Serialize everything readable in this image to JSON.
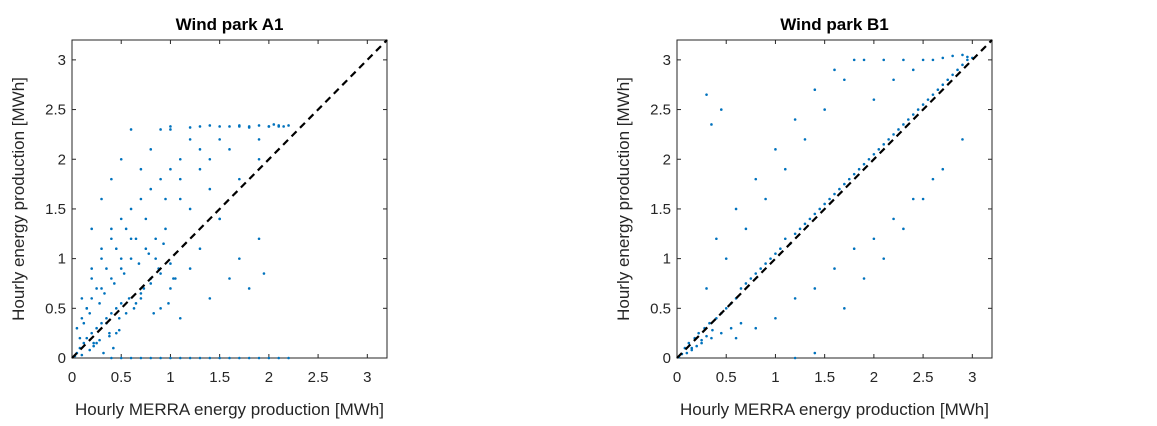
{
  "chart_data": [
    {
      "type": "scatter",
      "title": "Wind park A1",
      "xlabel": "Hourly MERRA energy production [MWh]",
      "ylabel": "Hourly energy production [MWh]",
      "xlim": [
        0,
        3.2
      ],
      "ylim": [
        0,
        3.2
      ],
      "xticks": [
        0,
        0.5,
        1,
        1.5,
        2,
        2.5,
        3
      ],
      "yticks": [
        0,
        0.5,
        1,
        1.5,
        2,
        2.5,
        3
      ],
      "xtick_labels": [
        "0",
        "0.5",
        "1",
        "1.5",
        "2",
        "2.5",
        "3"
      ],
      "ytick_labels": [
        "0",
        "0.5",
        "1",
        "1.5",
        "2",
        "2.5",
        "3"
      ],
      "grid": false,
      "reference_line": {
        "from": [
          0,
          0
        ],
        "to": [
          3.2,
          3.2
        ],
        "style": "dashed",
        "color": "#000000"
      },
      "point_color": "#0072BD",
      "series": [
        {
          "x": [
            0.03,
            0.05,
            0.08,
            0.1,
            0.12,
            0.15,
            0.18,
            0.2,
            0.22,
            0.25,
            0.28,
            0.3,
            0.32,
            0.35,
            0.38,
            0.4,
            0.42,
            0.45,
            0.48,
            0.5,
            0.05,
            0.1,
            0.15,
            0.2,
            0.25,
            0.3,
            0.35,
            0.4,
            0.45,
            0.5,
            0.55,
            0.6,
            0.65,
            0.7,
            0.75,
            0.8,
            0.85,
            0.9,
            0.95,
            1.0,
            0.1,
            0.2,
            0.3,
            0.4,
            0.5,
            0.6,
            0.7,
            0.8,
            0.9,
            1.0,
            1.1,
            1.2,
            1.3,
            1.4,
            1.5,
            0.2,
            0.3,
            0.4,
            0.5,
            0.6,
            0.7,
            0.8,
            0.9,
            1.0,
            1.1,
            1.2,
            1.3,
            1.4,
            1.5,
            1.6,
            1.7,
            1.8,
            1.9,
            2.0,
            2.1,
            0.4,
            0.5,
            0.6,
            0.7,
            0.8,
            0.9,
            1.0,
            1.1,
            1.2,
            1.3,
            1.4,
            1.5,
            1.6,
            1.7,
            1.8,
            1.9,
            2.0,
            2.1,
            2.2,
            0.2,
            0.3,
            0.4,
            0.5,
            0.6,
            0.7,
            0.8,
            0.9,
            1.0,
            1.1,
            1.2,
            1.3,
            1.4,
            1.5,
            1.6,
            1.7,
            1.8,
            1.9,
            1.95,
            1.0,
            1.2,
            1.4,
            1.6,
            1.7,
            1.8,
            1.9,
            2.0,
            2.05,
            2.1,
            2.15,
            2.2,
            1.1,
            1.3,
            1.5,
            1.7,
            1.9,
            0.15,
            0.25,
            0.35,
            0.45,
            0.55,
            0.65,
            0.75,
            0.85,
            0.95,
            1.05,
            0.08,
            0.12,
            0.18,
            0.22,
            0.28,
            0.33,
            0.38,
            0.43,
            0.48,
            0.53,
            0.58,
            0.63,
            0.68,
            0.73,
            0.78,
            0.83,
            0.88,
            0.93,
            0.98,
            1.03
          ],
          "y": [
            0.02,
            0.05,
            0.1,
            0.03,
            0.15,
            0.2,
            0.08,
            0.25,
            0.12,
            0.3,
            0.18,
            0.35,
            0.05,
            0.4,
            0.22,
            0.45,
            0.1,
            0.5,
            0.28,
            0.55,
            0.3,
            0.4,
            0.5,
            0.6,
            0.15,
            0.7,
            0.35,
            0.8,
            0.25,
            0.9,
            0.45,
            1.0,
            0.55,
            0.65,
            1.1,
            0.75,
            1.2,
            0.85,
            1.3,
            0.95,
            0.6,
            0.8,
            1.0,
            1.2,
            1.4,
            1.5,
            1.6,
            1.7,
            1.8,
            1.9,
            2.0,
            1.5,
            2.1,
            1.7,
            2.2,
            1.3,
            1.6,
            1.8,
            2.0,
            2.3,
            1.9,
            2.1,
            2.3,
            2.33,
            1.8,
            2.2,
            2.33,
            2.0,
            2.33,
            2.1,
            2.33,
            2.33,
            2.2,
            2.33,
            2.33,
            0.0,
            0.0,
            0.0,
            0.0,
            0.0,
            0.0,
            0.0,
            0.0,
            0.0,
            0.0,
            0.0,
            0.0,
            0.0,
            0.0,
            0.0,
            0.0,
            0.0,
            0.0,
            0.0,
            0.9,
            1.1,
            1.3,
            1.0,
            1.2,
            0.6,
            0.8,
            0.5,
            0.7,
            0.4,
            0.9,
            1.1,
            0.6,
            1.4,
            0.8,
            1.0,
            0.7,
            1.2,
            0.85,
            2.3,
            2.32,
            2.34,
            2.33,
            2.34,
            2.32,
            2.34,
            2.33,
            2.35,
            2.34,
            2.33,
            2.34,
            1.6,
            1.9,
            1.4,
            1.8,
            2.0,
            0.5,
            0.7,
            0.9,
            1.1,
            1.3,
            1.2,
            1.4,
            1.0,
            1.6,
            0.8,
            0.2,
            0.35,
            0.45,
            0.15,
            0.55,
            0.65,
            0.25,
            0.75,
            0.4,
            0.85,
            0.6,
            0.5,
            0.95,
            0.7,
            1.05,
            0.45,
            0.9,
            1.15,
            0.55,
            0.8
          ]
        }
      ]
    },
    {
      "type": "scatter",
      "title": "Wind park B1",
      "xlabel": "Hourly MERRA energy production [MWh]",
      "ylabel": "Hourly energy production [MWh]",
      "xlim": [
        0,
        3.2
      ],
      "ylim": [
        0,
        3.2
      ],
      "xticks": [
        0,
        0.5,
        1,
        1.5,
        2,
        2.5,
        3
      ],
      "yticks": [
        0,
        0.5,
        1,
        1.5,
        2,
        2.5,
        3
      ],
      "xtick_labels": [
        "0",
        "0.5",
        "1",
        "1.5",
        "2",
        "2.5",
        "3"
      ],
      "ytick_labels": [
        "0",
        "0.5",
        "1",
        "1.5",
        "2",
        "2.5",
        "3"
      ],
      "grid": false,
      "reference_line": {
        "from": [
          0,
          0
        ],
        "to": [
          3.2,
          3.2
        ],
        "style": "dashed",
        "color": "#000000"
      },
      "point_color": "#0072BD",
      "series": [
        {
          "x": [
            0.02,
            0.05,
            0.08,
            0.1,
            0.12,
            0.15,
            0.18,
            0.2,
            0.22,
            0.25,
            0.28,
            0.3,
            0.33,
            0.36,
            0.4,
            0.45,
            0.5,
            0.55,
            0.6,
            0.65,
            0.7,
            0.75,
            0.8,
            0.85,
            0.9,
            0.95,
            1.0,
            1.05,
            1.1,
            1.15,
            1.2,
            1.25,
            1.3,
            1.35,
            1.4,
            1.45,
            1.5,
            1.55,
            1.6,
            1.65,
            1.7,
            1.75,
            1.8,
            1.85,
            1.9,
            1.95,
            2.0,
            2.05,
            2.1,
            2.15,
            2.2,
            2.25,
            2.3,
            2.35,
            2.4,
            2.45,
            2.5,
            2.55,
            2.6,
            2.65,
            2.7,
            2.75,
            2.8,
            2.85,
            2.9,
            2.95,
            3.0,
            0.3,
            0.5,
            0.7,
            0.9,
            1.1,
            1.3,
            1.5,
            1.7,
            1.9,
            2.1,
            2.3,
            2.5,
            0.6,
            0.8,
            1.0,
            1.2,
            1.4,
            1.6,
            1.8,
            2.0,
            2.2,
            2.4,
            2.6,
            0.4,
            0.6,
            0.8,
            1.0,
            1.2,
            1.4,
            1.6,
            1.8,
            2.0,
            2.2,
            2.4,
            0.15,
            0.25,
            0.35,
            0.45,
            0.55,
            0.65,
            1.7,
            1.9,
            2.1,
            2.3,
            2.5,
            2.7,
            2.9,
            2.6,
            2.7,
            2.8,
            2.9,
            2.95,
            0.45,
            0.3,
            0.35,
            1.2,
            1.4
          ],
          "y": [
            0.01,
            0.04,
            0.1,
            0.05,
            0.15,
            0.08,
            0.2,
            0.12,
            0.25,
            0.18,
            0.3,
            0.22,
            0.35,
            0.28,
            0.4,
            0.45,
            0.5,
            0.55,
            0.6,
            0.7,
            0.75,
            0.8,
            0.85,
            0.9,
            0.95,
            1.0,
            1.05,
            1.1,
            1.2,
            1.15,
            1.25,
            1.3,
            1.35,
            1.4,
            1.45,
            1.5,
            1.55,
            1.6,
            1.65,
            1.7,
            1.75,
            1.8,
            1.85,
            1.9,
            1.95,
            2.0,
            2.05,
            2.1,
            2.15,
            2.2,
            2.25,
            2.3,
            2.35,
            2.4,
            2.45,
            2.5,
            2.55,
            2.6,
            2.65,
            2.7,
            2.75,
            2.8,
            2.85,
            2.9,
            2.95,
            3.0,
            3.02,
            0.7,
            1.0,
            1.3,
            1.6,
            1.9,
            2.2,
            2.5,
            2.8,
            3.0,
            3.0,
            3.0,
            3.0,
            0.2,
            0.3,
            0.4,
            0.6,
            0.7,
            0.9,
            1.1,
            1.2,
            1.4,
            1.6,
            1.8,
            1.2,
            1.5,
            1.8,
            2.1,
            2.4,
            2.7,
            2.9,
            3.0,
            2.6,
            2.8,
            2.9,
            0.1,
            0.15,
            0.2,
            0.25,
            0.3,
            0.35,
            0.5,
            0.8,
            1.0,
            1.3,
            1.6,
            1.9,
            2.2,
            3.0,
            3.02,
            3.04,
            3.05,
            3.03,
            2.5,
            2.65,
            2.35,
            0.0,
            0.05
          ]
        }
      ]
    }
  ]
}
